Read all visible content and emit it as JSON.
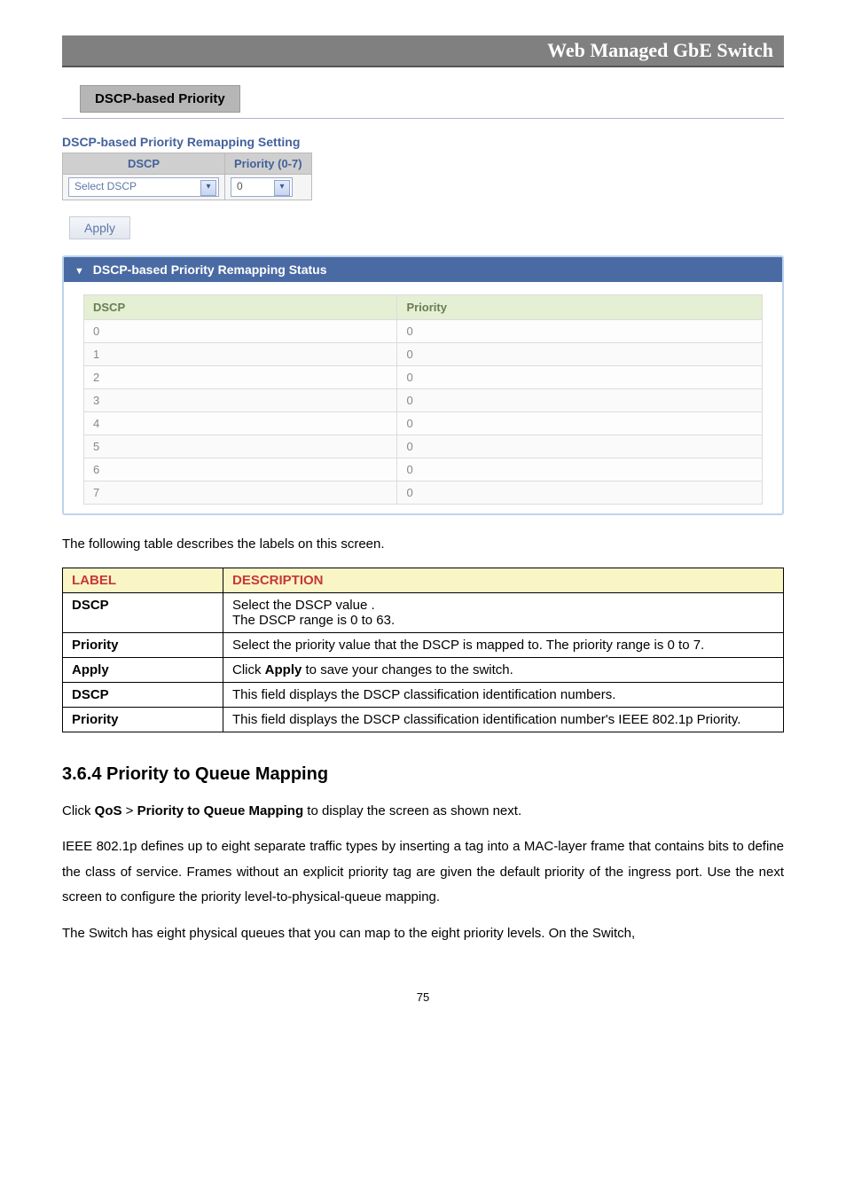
{
  "header": {
    "title": "Web Managed GbE Switch"
  },
  "tab": {
    "label": "DSCP-based Priority"
  },
  "setting": {
    "title": "DSCP-based Priority Remapping Setting",
    "col_dscp": "DSCP",
    "col_priority": "Priority (0-7)",
    "select_placeholder": "Select DSCP",
    "priority_placeholder": "0",
    "apply_label": "Apply"
  },
  "status": {
    "title": "DSCP-based Priority Remapping Status",
    "col_dscp": "DSCP",
    "col_priority": "Priority",
    "rows": [
      {
        "dscp": "0",
        "priority": "0"
      },
      {
        "dscp": "1",
        "priority": "0"
      },
      {
        "dscp": "2",
        "priority": "0"
      },
      {
        "dscp": "3",
        "priority": "0"
      },
      {
        "dscp": "4",
        "priority": "0"
      },
      {
        "dscp": "5",
        "priority": "0"
      },
      {
        "dscp": "6",
        "priority": "0"
      },
      {
        "dscp": "7",
        "priority": "0"
      }
    ]
  },
  "intro_text": "The following table describes the labels on this screen.",
  "desc_table": {
    "header_label": "LABEL",
    "header_desc": "DESCRIPTION",
    "rows": [
      {
        "label": "DSCP",
        "desc": "Select the DSCP value                                                                 .\nThe DSCP range is 0 to 63."
      },
      {
        "label": "Priority",
        "desc": "Select the priority value that the DSCP is mapped to. The priority range is 0 to 7."
      },
      {
        "label": "Apply",
        "desc_html": "Click <b>Apply</b> to save your changes to the switch."
      },
      {
        "label": "DSCP",
        "desc": "This field displays the DSCP classification identification numbers."
      },
      {
        "label": "Priority",
        "desc": "This field displays the DSCP classification identification number's IEEE 802.1p Priority."
      }
    ]
  },
  "section": {
    "heading": "3.6.4 Priority to Queue Mapping",
    "p1_html": "Click <b>QoS</b> > <b>Priority to Queue Mapping</b> to display the screen as shown next.",
    "p2": "IEEE 802.1p defines up to eight separate traffic types by inserting a tag into a MAC-layer frame that contains bits to define the class of service. Frames without an explicit priority tag are given the default priority of the ingress port. Use the next screen to configure the priority level-to-physical-queue mapping.",
    "p3": "The Switch has eight physical queues that you can map to the eight priority levels. On the Switch,"
  },
  "page_number": "75"
}
